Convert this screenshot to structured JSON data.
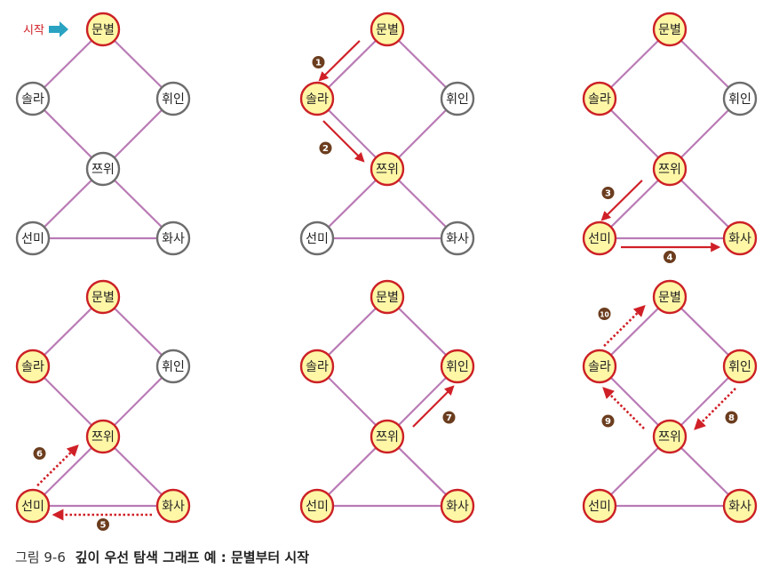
{
  "start_label": "시작",
  "colors": {
    "edge": "#b97ab5",
    "visited_fill": "#fff7a6",
    "visited_stroke": "#cc2026",
    "unvisited_fill": "#ffffff",
    "unvisited_stroke": "#6d6d6d",
    "arrow": "#d02027",
    "badge": "#6b3d1e",
    "start_arrow": "#2aa3c2",
    "start_text": "#d02027"
  },
  "nodes": {
    "moonbyul": "문별",
    "solar": "솔라",
    "wheein": "휘인",
    "jjeuwi": "쯔위",
    "sunmi": "선미",
    "hwasa": "화사"
  },
  "edges": [
    [
      "moonbyul",
      "solar"
    ],
    [
      "moonbyul",
      "wheein"
    ],
    [
      "solar",
      "jjeuwi"
    ],
    [
      "wheein",
      "jjeuwi"
    ],
    [
      "jjeuwi",
      "sunmi"
    ],
    [
      "jjeuwi",
      "hwasa"
    ],
    [
      "sunmi",
      "hwasa"
    ]
  ],
  "panels": [
    {
      "visited": [
        "moonbyul"
      ],
      "show_start": true,
      "arrows": []
    },
    {
      "visited": [
        "moonbyul",
        "solar",
        "jjeuwi"
      ],
      "show_start": false,
      "arrows": [
        {
          "from": "moonbyul",
          "to": "solar",
          "step": "1",
          "style": "solid"
        },
        {
          "from": "solar",
          "to": "jjeuwi",
          "step": "2",
          "style": "solid"
        }
      ]
    },
    {
      "visited": [
        "moonbyul",
        "solar",
        "jjeuwi",
        "sunmi",
        "hwasa"
      ],
      "show_start": false,
      "arrows": [
        {
          "from": "jjeuwi",
          "to": "sunmi",
          "step": "3",
          "style": "solid"
        },
        {
          "from": "sunmi",
          "to": "hwasa",
          "step": "4",
          "style": "solid"
        }
      ]
    },
    {
      "visited": [
        "moonbyul",
        "solar",
        "jjeuwi",
        "sunmi",
        "hwasa"
      ],
      "show_start": false,
      "arrows": [
        {
          "from": "hwasa",
          "to": "sunmi",
          "step": "5",
          "style": "dotted"
        },
        {
          "from": "sunmi",
          "to": "jjeuwi",
          "step": "6",
          "style": "dotted"
        }
      ]
    },
    {
      "visited": [
        "moonbyul",
        "solar",
        "wheein",
        "jjeuwi",
        "sunmi",
        "hwasa"
      ],
      "show_start": false,
      "arrows": [
        {
          "from": "jjeuwi",
          "to": "wheein",
          "step": "7",
          "style": "solid"
        }
      ]
    },
    {
      "visited": [
        "moonbyul",
        "solar",
        "wheein",
        "jjeuwi",
        "sunmi",
        "hwasa"
      ],
      "show_start": false,
      "arrows": [
        {
          "from": "wheein",
          "to": "jjeuwi",
          "step": "8",
          "style": "dotted"
        },
        {
          "from": "jjeuwi",
          "to": "solar",
          "step": "9",
          "style": "dotted"
        },
        {
          "from": "solar",
          "to": "moonbyul",
          "step": "10",
          "style": "dotted"
        }
      ]
    }
  ],
  "caption": {
    "figure": "그림 9-6",
    "title": "깊이 우선 탐색 그래프 예 : 문별부터 시작"
  }
}
